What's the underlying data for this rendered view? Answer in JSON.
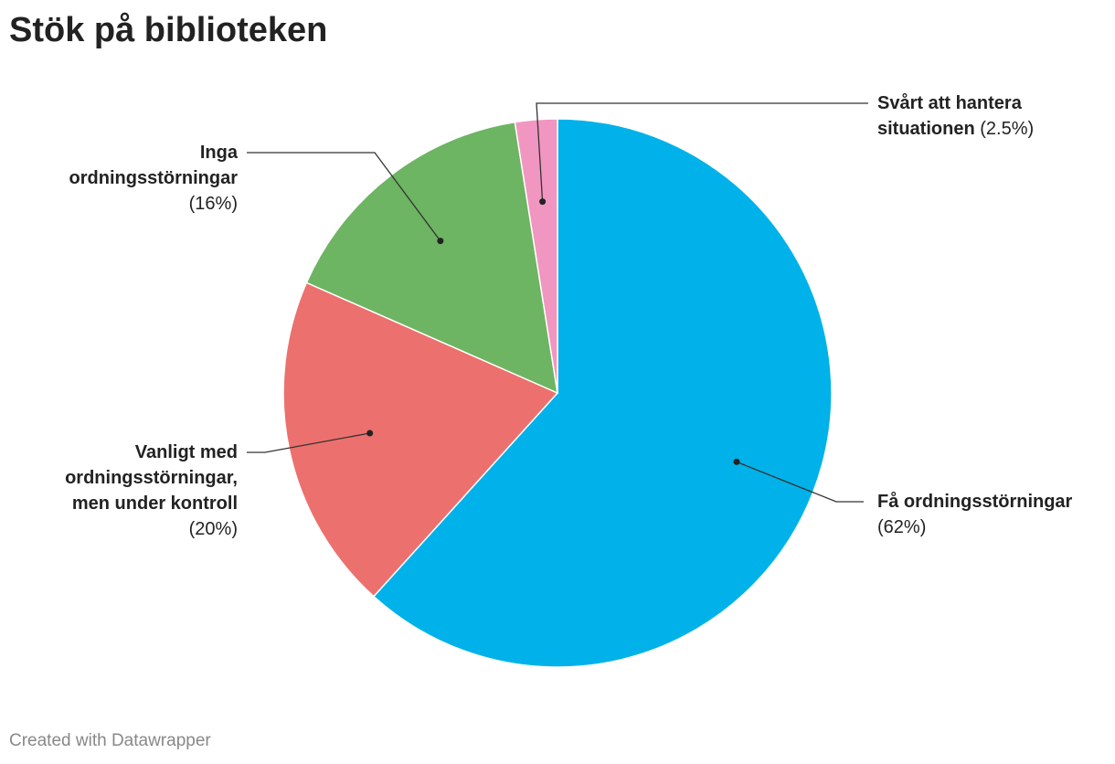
{
  "chart_data": {
    "type": "pie",
    "title": "Stök på biblioteken",
    "categories": [
      "Få ordningsstörningar",
      "Vanligt med ordningsstörningar, men under kontroll",
      "Inga ordningsstörningar",
      "Svårt att hantera situationen"
    ],
    "values": [
      62,
      20,
      16,
      2.5
    ],
    "value_labels": [
      "(62%)",
      "(20%)",
      "(16%)",
      "(2.5%)"
    ],
    "colors": [
      "#00b2e9",
      "#ec706d",
      "#6db463",
      "#f196c0"
    ],
    "credit": "Created with Datawrapper"
  }
}
